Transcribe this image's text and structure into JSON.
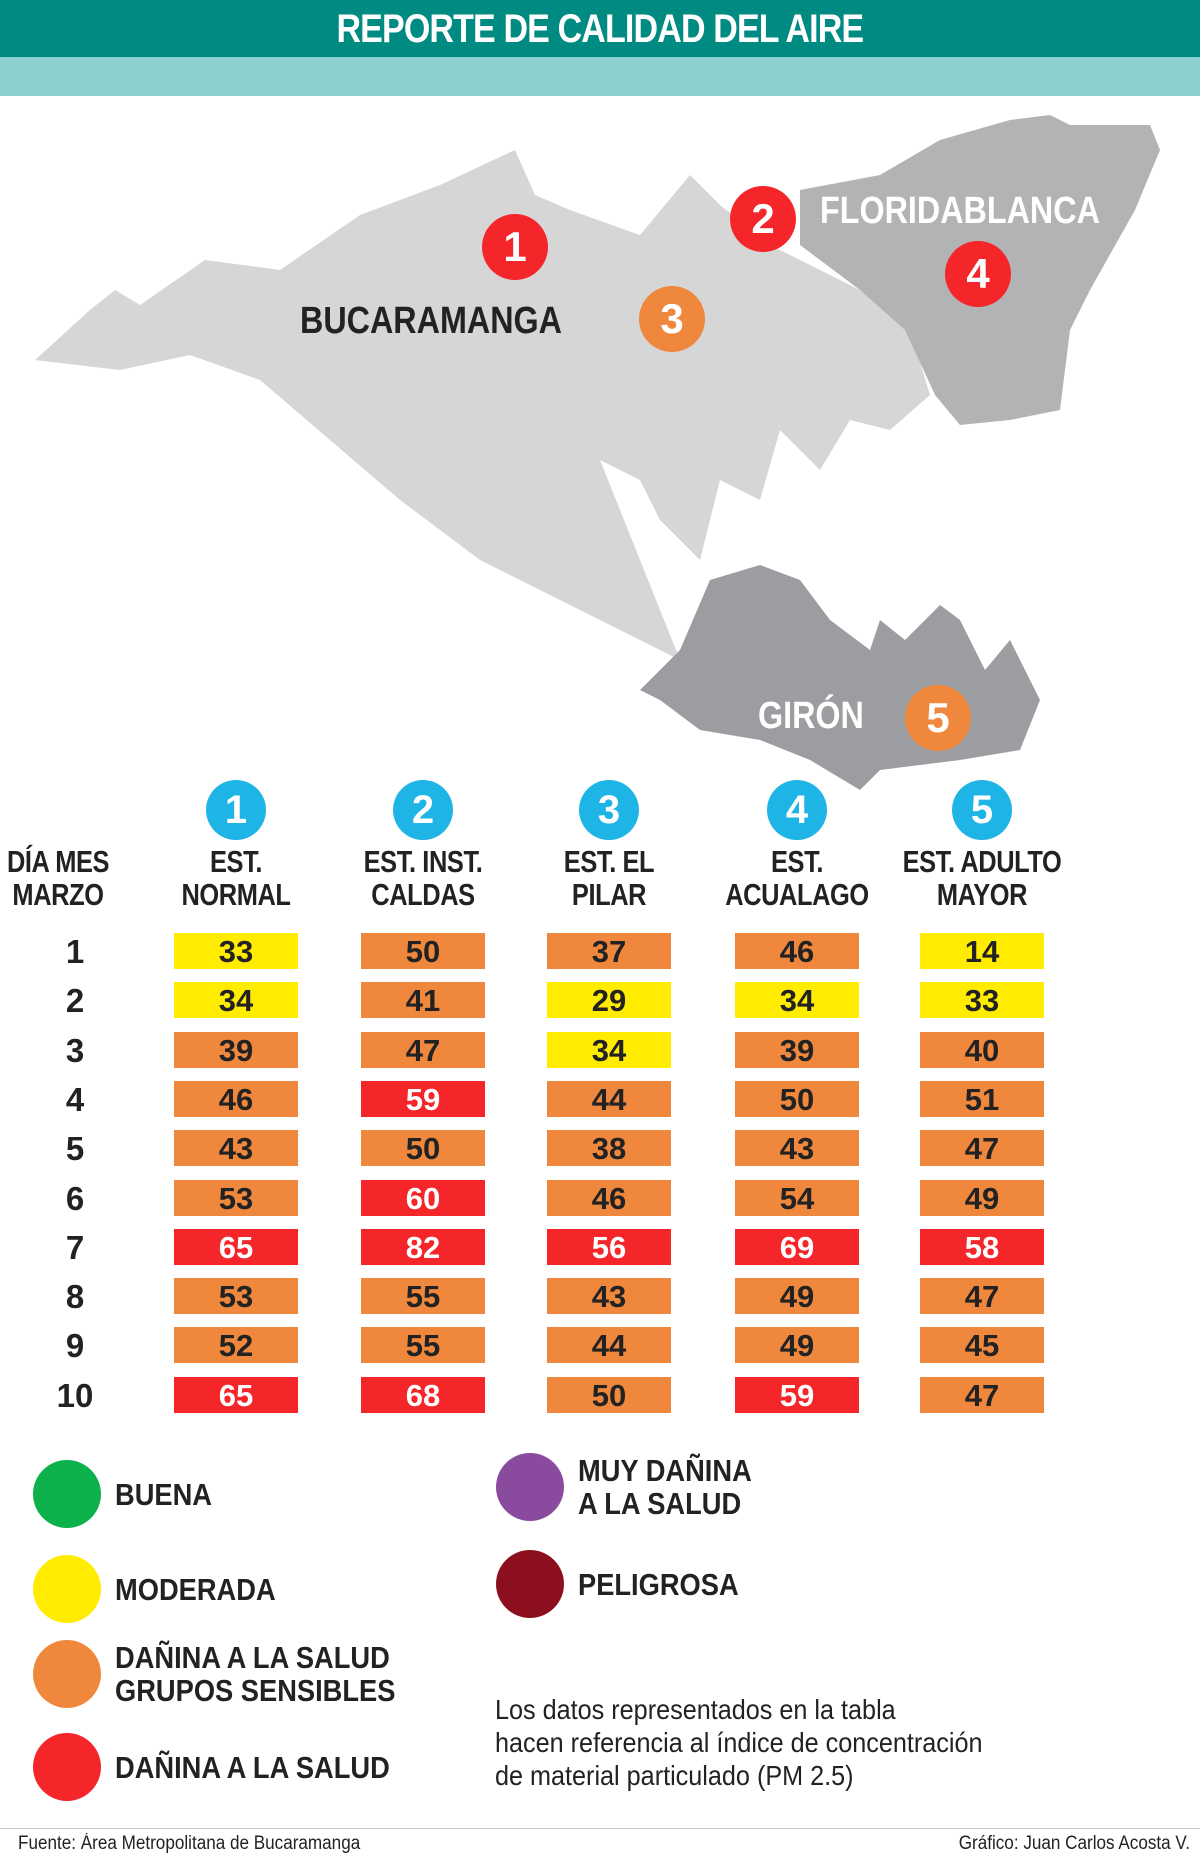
{
  "title": "REPORTE DE CALIDAD DEL AIRE",
  "map": {
    "labels": {
      "bucaramanga": "BUCARAMANGA",
      "floridablanca": "FLORIDABLANCA",
      "giron": "GIRÓN"
    },
    "pins": [
      {
        "num": "1",
        "color": "#f5262a"
      },
      {
        "num": "2",
        "color": "#f5262a"
      },
      {
        "num": "3",
        "color": "#ef873d"
      },
      {
        "num": "4",
        "color": "#f5262a"
      },
      {
        "num": "5",
        "color": "#ef873d"
      }
    ]
  },
  "table": {
    "day_header": [
      "DÍA MES",
      "MARZO"
    ],
    "stations": [
      {
        "num": "1",
        "name": [
          "EST.",
          "NORMAL"
        ]
      },
      {
        "num": "2",
        "name": [
          "EST. INST.",
          "CALDAS"
        ]
      },
      {
        "num": "3",
        "name": [
          "EST. EL",
          "PILAR"
        ]
      },
      {
        "num": "4",
        "name": [
          "EST.",
          "ACUALAGO"
        ]
      },
      {
        "num": "5",
        "name": [
          "EST. ADULTO",
          "MAYOR"
        ]
      }
    ],
    "rows": [
      {
        "day": "1",
        "values": [
          "33",
          "50",
          "37",
          "46",
          "14"
        ],
        "levels": [
          "y",
          "o",
          "o",
          "o",
          "y"
        ]
      },
      {
        "day": "2",
        "values": [
          "34",
          "41",
          "29",
          "34",
          "33"
        ],
        "levels": [
          "y",
          "o",
          "y",
          "y",
          "y"
        ]
      },
      {
        "day": "3",
        "values": [
          "39",
          "47",
          "34",
          "39",
          "40"
        ],
        "levels": [
          "o",
          "o",
          "y",
          "o",
          "o"
        ]
      },
      {
        "day": "4",
        "values": [
          "46",
          "59",
          "44",
          "50",
          "51"
        ],
        "levels": [
          "o",
          "r",
          "o",
          "o",
          "o"
        ]
      },
      {
        "day": "5",
        "values": [
          "43",
          "50",
          "38",
          "43",
          "47"
        ],
        "levels": [
          "o",
          "o",
          "o",
          "o",
          "o"
        ]
      },
      {
        "day": "6",
        "values": [
          "53",
          "60",
          "46",
          "54",
          "49"
        ],
        "levels": [
          "o",
          "r",
          "o",
          "o",
          "o"
        ]
      },
      {
        "day": "7",
        "values": [
          "65",
          "82",
          "56",
          "69",
          "58"
        ],
        "levels": [
          "r",
          "r",
          "r",
          "r",
          "r"
        ]
      },
      {
        "day": "8",
        "values": [
          "53",
          "55",
          "43",
          "49",
          "47"
        ],
        "levels": [
          "o",
          "o",
          "o",
          "o",
          "o"
        ]
      },
      {
        "day": "9",
        "values": [
          "52",
          "55",
          "44",
          "49",
          "45"
        ],
        "levels": [
          "o",
          "o",
          "o",
          "o",
          "o"
        ]
      },
      {
        "day": "10",
        "values": [
          "65",
          "68",
          "50",
          "59",
          "47"
        ],
        "levels": [
          "r",
          "r",
          "o",
          "r",
          "o"
        ]
      }
    ]
  },
  "legend": [
    {
      "label": [
        "BUENA"
      ],
      "color": "#0db14b"
    },
    {
      "label": [
        "MODERADA"
      ],
      "color": "#ffec00"
    },
    {
      "label": [
        "DAÑINA A LA SALUD",
        "GRUPOS SENSIBLES"
      ],
      "color": "#ef873d"
    },
    {
      "label": [
        "DAÑINA A LA SALUD"
      ],
      "color": "#f5262a"
    },
    {
      "label": [
        "MUY DAÑINA",
        "A LA SALUD"
      ],
      "color": "#8a4a9e"
    },
    {
      "label": [
        "PELIGROSA"
      ],
      "color": "#8b0f1f"
    }
  ],
  "note": [
    "Los datos representados en la tabla",
    "hacen referencia al índice de concentración",
    "de material particulado (PM 2.5)"
  ],
  "footer": {
    "source": "Fuente: Área Metropolitana de Bucaramanga",
    "credit": "Gráfico: Juan Carlos Acosta V."
  }
}
